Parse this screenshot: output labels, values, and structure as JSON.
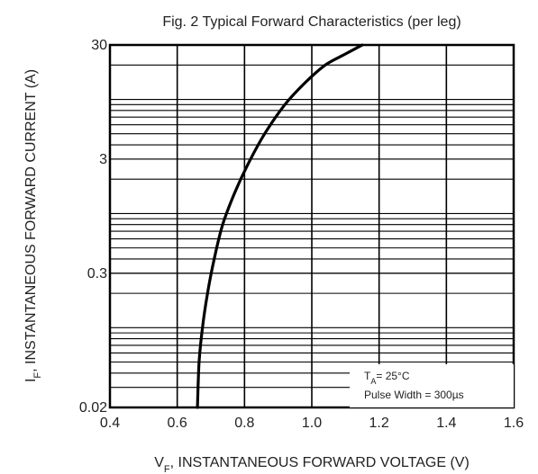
{
  "chart_data": {
    "type": "line",
    "title": "Fig. 2 Typical Forward Characteristics (per leg)",
    "xlabel": {
      "main": "V",
      "sub": "F",
      "rest": ", INSTANTANEOUS FORWARD VOLTAGE (V)"
    },
    "ylabel": {
      "main": "I",
      "sub": "F",
      "rest": ", INSTANTANEOUS FORWARD CURRENT (A)"
    },
    "x_ticks": [
      0.4,
      0.6,
      0.8,
      1.0,
      1.2,
      1.4,
      1.6
    ],
    "x_tick_labels": [
      "0.4",
      "0.6",
      "0.8",
      "1.0",
      "1.2",
      "1.4",
      "1.6"
    ],
    "y_ticks": [
      0.02,
      0.3,
      3,
      30
    ],
    "y_tick_labels": [
      "0.02",
      "0.3",
      "3",
      "30"
    ],
    "xlim": [
      0.4,
      1.6
    ],
    "ylim": [
      0.02,
      30
    ],
    "y_scale": "log",
    "grid": true,
    "legend": {
      "position": "bottom-right",
      "lines": [
        {
          "main": "T",
          "sub": "A",
          "rest": "= 25°C"
        },
        {
          "main": "Pulse Width = 300µs",
          "sub": "",
          "rest": ""
        }
      ]
    },
    "series": [
      {
        "x": [
          0.66,
          0.665,
          0.675,
          0.69,
          0.71,
          0.735,
          0.77,
          0.81,
          0.86,
          0.92,
          0.98,
          1.04,
          1.1,
          1.15
        ],
        "y": [
          0.02,
          0.05,
          0.1,
          0.2,
          0.4,
          0.8,
          1.5,
          2.7,
          5,
          9,
          14,
          20,
          25,
          30
        ]
      }
    ]
  }
}
